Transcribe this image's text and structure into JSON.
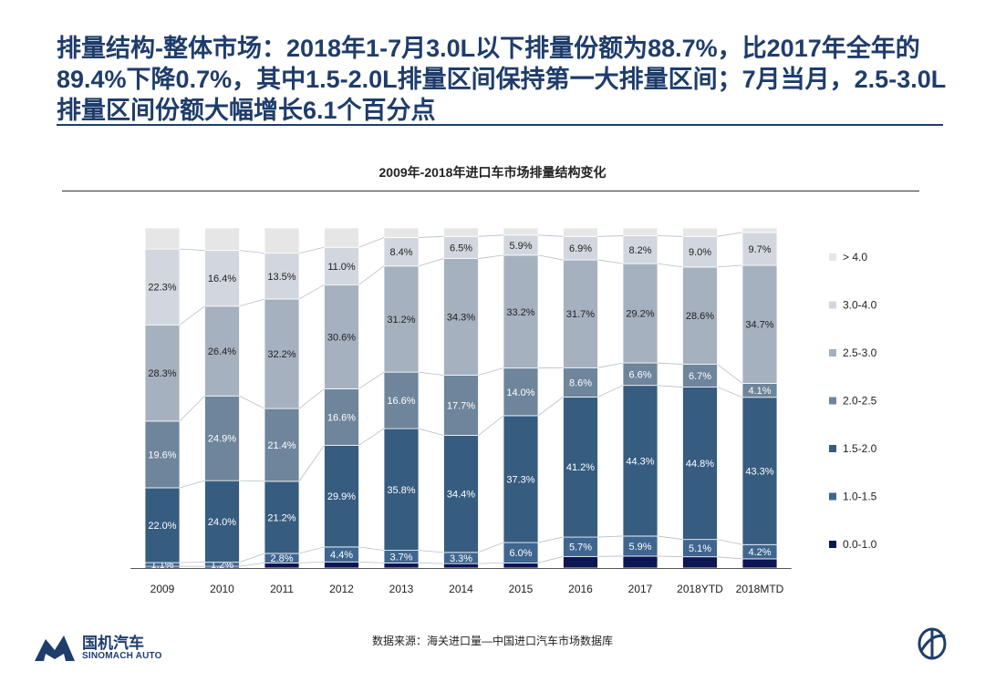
{
  "headline": "排量结构-整体市场：2018年1-7月3.0L以下排量份额为88.7%，比2017年全年的89.4%下降0.7%，其中1.5-2.0L排量区间保持第一大排量区间；7月当月，2.5-3.0L排量区间份额大幅增长6.1个百分点",
  "source": "数据来源：海关进口量—中国进口汽车市场数据库",
  "logo": {
    "cn": "国机汽车",
    "en": "SINOMACH AUTO",
    "badge": "CADA"
  },
  "colors": {
    "0.0-1.0": "#0b1652",
    "1.0-1.5": "#3f6690",
    "1.5-2.0": "#365c80",
    "2.0-2.5": "#6e859b",
    "2.5-3.0": "#a6b1c0",
    "3.0-4.0": "#d2d7df",
    ">4.0": "#e6e6e6",
    "headline": "#1f3d6b"
  },
  "chart_data": {
    "type": "bar",
    "stacked": true,
    "title": "2009年-2018年进口车市场排量结构变化",
    "categories": [
      "2009",
      "2010",
      "2011",
      "2012",
      "2013",
      "2014",
      "2015",
      "2016",
      "2017",
      "2018YTD",
      "2018MTD"
    ],
    "ylim": [
      0,
      100
    ],
    "legend_position": "right",
    "series": [
      {
        "name": "0.0-1.0",
        "values": [
          0.5,
          0.5,
          1.5,
          1.8,
          1.5,
          1.3,
          1.5,
          3.4,
          3.5,
          3.3,
          2.7
        ]
      },
      {
        "name": "1.0-1.5",
        "values": [
          1.1,
          1.2,
          2.8,
          4.4,
          3.7,
          3.3,
          6.0,
          5.7,
          5.9,
          5.1,
          4.2
        ]
      },
      {
        "name": "1.5-2.0",
        "values": [
          22.0,
          24.0,
          21.2,
          29.9,
          35.8,
          34.4,
          37.3,
          41.2,
          44.3,
          44.8,
          43.3
        ]
      },
      {
        "name": "2.0-2.5",
        "values": [
          19.6,
          24.9,
          21.4,
          16.6,
          16.6,
          17.7,
          14.0,
          8.6,
          6.6,
          6.7,
          4.1
        ]
      },
      {
        "name": "2.5-3.0",
        "values": [
          28.3,
          26.4,
          32.2,
          30.6,
          31.2,
          34.3,
          33.2,
          31.7,
          29.2,
          28.6,
          34.7
        ]
      },
      {
        "name": "3.0-4.0",
        "values": [
          22.3,
          16.4,
          13.5,
          11.0,
          8.4,
          6.5,
          5.9,
          6.9,
          8.2,
          9.0,
          9.7
        ]
      },
      {
        "name": ">4.0",
        "values": [
          6.2,
          6.6,
          7.4,
          5.7,
          2.8,
          2.5,
          2.1,
          2.5,
          2.3,
          2.5,
          1.3
        ]
      }
    ],
    "labels": [
      [
        null,
        null,
        null,
        null,
        null,
        null,
        null,
        null,
        null,
        null,
        null
      ],
      [
        "1.1%",
        "1.2%",
        "2.8%",
        "4.4%",
        "3.7%",
        "3.3%",
        "6.0%",
        "5.7%",
        "5.9%",
        "5.1%",
        "4.2%"
      ],
      [
        "22.0%",
        "24.0%",
        "21.2%",
        "29.9%",
        "35.8%",
        "34.4%",
        "37.3%",
        "41.2%",
        "44.3%",
        "44.8%",
        "43.3%"
      ],
      [
        "19.6%",
        "24.9%",
        "21.4%",
        "16.6%",
        "16.6%",
        "17.7%",
        "14.0%",
        "8.6%",
        "6.6%",
        "6.7%",
        "4.1%"
      ],
      [
        "28.3%",
        "26.4%",
        "32.2%",
        "30.6%",
        "31.2%",
        "34.3%",
        "33.2%",
        "31.7%",
        "29.2%",
        "28.6%",
        "34.7%"
      ],
      [
        "22.3%",
        "16.4%",
        "13.5%",
        "11.0%",
        "8.4%",
        "6.5%",
        "5.9%",
        "6.9%",
        "8.2%",
        "9.0%",
        "9.7%"
      ],
      [
        null,
        null,
        null,
        null,
        null,
        null,
        null,
        null,
        null,
        null,
        null
      ]
    ],
    "legend_order": [
      ">4.0",
      "3.0-4.0",
      "2.5-3.0",
      "2.0-2.5",
      "1.5-2.0",
      "1.0-1.5",
      "0.0-1.0"
    ],
    "legend_labels": [
      "> 4.0",
      "3.0-4.0",
      "2.5-3.0",
      "2.0-2.5",
      "1.5-2.0",
      "1.0-1.5",
      "0.0-1.0"
    ]
  }
}
